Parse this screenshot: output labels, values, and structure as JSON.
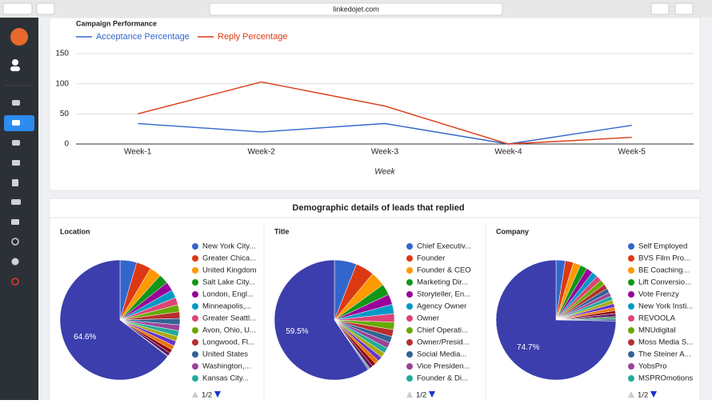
{
  "browser": {
    "url": "linkedojet.com"
  },
  "demographics_heading": "Demographic details of leads that replied",
  "chart_data": [
    {
      "type": "line",
      "title": "Campaign Performance",
      "x_label": "Week",
      "categories": [
        "Week-1",
        "Week-2",
        "Week-3",
        "Week-4",
        "Week-5"
      ],
      "series": [
        {
          "name": "Acceptance Percentage",
          "color": "#3366cc",
          "values": [
            34,
            20,
            34,
            0,
            31
          ]
        },
        {
          "name": "Reply Percentage",
          "color": "#dc3912",
          "values": [
            50,
            103,
            63,
            0,
            11
          ]
        }
      ],
      "ylim": [
        0,
        150
      ],
      "yticks": [
        0,
        50,
        100,
        150
      ],
      "grid": true,
      "legend": "top"
    },
    {
      "type": "pie",
      "title": "Location",
      "pager": "1/2",
      "categories": [
        "New York City...",
        "Greater Chica...",
        "United Kingdom",
        "Salt Lake City...",
        "London, Engl...",
        "Minneapolis,...",
        "Greater Seattl...",
        "Avon, Ohio, U...",
        "Longwood, Fl...",
        "United States",
        "Washington,...",
        "Kansas City...",
        null,
        null,
        null,
        null,
        null,
        null,
        null,
        null
      ],
      "values": [
        4.5,
        4.0,
        3.2,
        2.6,
        2.4,
        2.2,
        2.0,
        1.9,
        1.8,
        1.7,
        1.6,
        1.5,
        1.4,
        1.3,
        1.2,
        1.0,
        0.9,
        0.2,
        0.0,
        64.6
      ],
      "value_labels": [
        null,
        null,
        null,
        null,
        null,
        null,
        null,
        null,
        null,
        null,
        null,
        null,
        null,
        null,
        null,
        null,
        null,
        null,
        null,
        "64.6%"
      ]
    },
    {
      "type": "pie",
      "title": "Title",
      "pager": "1/2",
      "categories": [
        "Chief Executiv...",
        "Founder",
        "Founder & CEO",
        "Marketing Dir...",
        "Storyteller, En...",
        "Agency Owner",
        "Owner",
        "Chief Operati...",
        "Owner/Presid...",
        "Social Media...",
        "Vice Presiden...",
        "Founder & Di...",
        null,
        null,
        null,
        null,
        null,
        null,
        null,
        null
      ],
      "values": [
        6,
        5,
        4,
        3,
        2.8,
        2.5,
        2.3,
        2,
        1.9,
        1.7,
        1.6,
        1.5,
        1.4,
        1.2,
        1.1,
        1,
        0.9,
        0.3,
        0.3,
        59.5
      ],
      "value_labels": [
        null,
        null,
        null,
        null,
        null,
        null,
        null,
        null,
        null,
        null,
        null,
        null,
        null,
        null,
        null,
        null,
        null,
        null,
        null,
        "59.5%"
      ]
    },
    {
      "type": "pie",
      "title": "Company",
      "pager": "1/2",
      "categories": [
        "Self Employed",
        "BVS Film Pro...",
        "BE Coaching...",
        "Lift Conversio...",
        "Vote Frenzy",
        "New York Insti...",
        "REVOOLA",
        "MNUdigital",
        "Moss Media S...",
        "The Steiner A...",
        "YobsPro",
        "MSPROmotions",
        null,
        null,
        null,
        null,
        null,
        null,
        null,
        null
      ],
      "values": [
        2.5,
        2.2,
        2,
        1.9,
        1.8,
        1.6,
        1.5,
        1.4,
        1.3,
        1.2,
        1.1,
        1.1,
        1,
        1,
        0.9,
        0.8,
        0.8,
        0.6,
        0.6,
        74.7
      ],
      "value_labels": [
        null,
        null,
        null,
        null,
        null,
        null,
        null,
        null,
        null,
        null,
        null,
        null,
        null,
        null,
        null,
        null,
        null,
        null,
        null,
        "74.7%"
      ]
    }
  ],
  "colors": [
    "#3366cc",
    "#dc3912",
    "#ff9900",
    "#109618",
    "#990099",
    "#0099c6",
    "#dd4477",
    "#66aa00",
    "#b82e2e",
    "#316395",
    "#994499",
    "#22aa99",
    "#aaaa11",
    "#6633cc",
    "#e67300",
    "#8b0707",
    "#651067",
    "#329262",
    "#5574a6",
    "#3b3eac"
  ]
}
